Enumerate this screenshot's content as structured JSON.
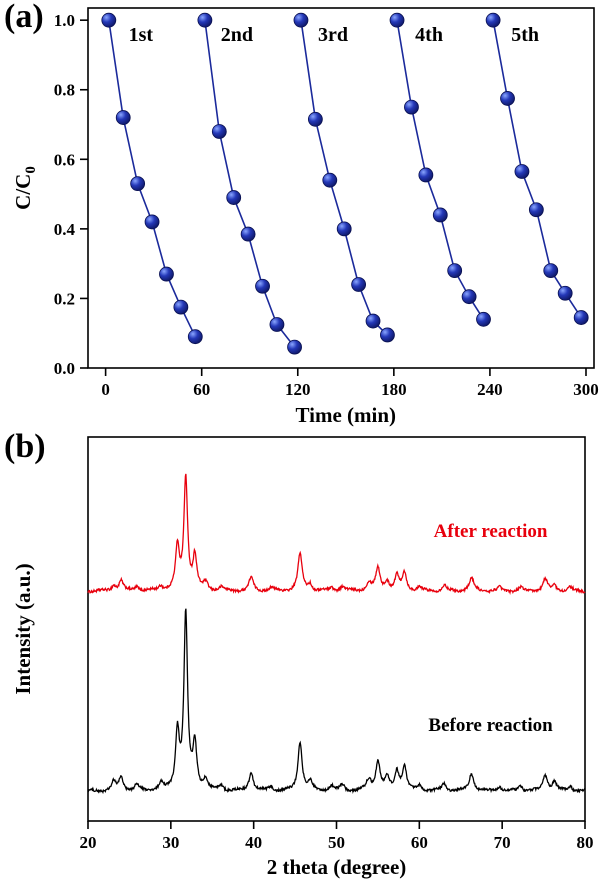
{
  "figure": {
    "background": "#ffffff"
  },
  "chart_data": [
    {
      "type": "line",
      "panel_label": "(a)",
      "title": "",
      "xlabel": "Time (min)",
      "ylabel": "C/C",
      "ylabel_sub": "0",
      "xlim": [
        -11,
        305
      ],
      "ylim": [
        0,
        1.035
      ],
      "xtick_values": [
        0,
        60,
        120,
        180,
        240,
        300
      ],
      "xtick_labels": [
        "0",
        "60",
        "120",
        "180",
        "240",
        "300"
      ],
      "ytick_values": [
        0,
        0.2,
        0.4,
        0.6,
        0.8,
        1.0
      ],
      "ytick_labels": [
        "0.0",
        "0.2",
        "0.4",
        "0.6",
        "0.8",
        "1.0"
      ],
      "line_color": "#1b2a9b",
      "marker_color": "#16227e",
      "cycle_labels": [
        {
          "text": "1st",
          "x": 22,
          "y": 0.94
        },
        {
          "text": "2nd",
          "x": 82,
          "y": 0.94
        },
        {
          "text": "3rd",
          "x": 142,
          "y": 0.94
        },
        {
          "text": "4th",
          "x": 202,
          "y": 0.94
        },
        {
          "text": "5th",
          "x": 262,
          "y": 0.94
        }
      ],
      "series": [
        {
          "name": "1st cycle",
          "x": [
            2,
            11,
            20,
            29,
            38,
            47,
            56
          ],
          "y": [
            1.0,
            0.72,
            0.53,
            0.42,
            0.27,
            0.175,
            0.09
          ]
        },
        {
          "name": "2nd cycle",
          "x": [
            62,
            71,
            80,
            89,
            98,
            107,
            118
          ],
          "y": [
            1.0,
            0.68,
            0.49,
            0.385,
            0.235,
            0.125,
            0.06
          ]
        },
        {
          "name": "3rd cycle",
          "x": [
            122,
            131,
            140,
            149,
            158,
            167,
            176
          ],
          "y": [
            1.0,
            0.715,
            0.54,
            0.4,
            0.24,
            0.135,
            0.095
          ]
        },
        {
          "name": "4th cycle",
          "x": [
            182,
            191,
            200,
            209,
            218,
            227,
            236
          ],
          "y": [
            1.0,
            0.75,
            0.555,
            0.44,
            0.28,
            0.205,
            0.14
          ]
        },
        {
          "name": "5th cycle",
          "x": [
            242,
            251,
            260,
            269,
            278,
            287,
            297
          ],
          "y": [
            1.0,
            0.775,
            0.565,
            0.455,
            0.28,
            0.215,
            0.145
          ]
        }
      ]
    },
    {
      "type": "line",
      "panel_label": "(b)",
      "title": "",
      "xlabel": "2 theta (degree)",
      "ylabel": "Intensity (a.u.)",
      "xlim": [
        20,
        80
      ],
      "xtick_values": [
        20,
        30,
        40,
        50,
        60,
        70,
        80
      ],
      "xtick_labels": [
        "20",
        "30",
        "40",
        "50",
        "60",
        "70",
        "80"
      ],
      "series": [
        {
          "name": "After reaction",
          "color": "#e8000d",
          "baseline": 0.406,
          "scale": 113,
          "noise": 2.4,
          "label_x": 0.81,
          "label_y": 0.26,
          "peaks": [
            [
              23.1,
              0.05,
              0.3
            ],
            [
              24.0,
              0.09,
              0.3
            ],
            [
              25.9,
              0.04,
              0.3
            ],
            [
              28.8,
              0.04,
              0.3
            ],
            [
              30.8,
              0.38,
              0.28
            ],
            [
              31.8,
              1.0,
              0.26
            ],
            [
              32.9,
              0.3,
              0.28
            ],
            [
              34.2,
              0.07,
              0.3
            ],
            [
              36.1,
              0.03,
              0.3
            ],
            [
              39.7,
              0.12,
              0.3
            ],
            [
              42.1,
              0.03,
              0.3
            ],
            [
              45.6,
              0.33,
              0.3
            ],
            [
              46.8,
              0.06,
              0.3
            ],
            [
              49.4,
              0.03,
              0.3
            ],
            [
              50.7,
              0.04,
              0.3
            ],
            [
              53.9,
              0.07,
              0.35
            ],
            [
              55.0,
              0.2,
              0.32
            ],
            [
              56.1,
              0.08,
              0.3
            ],
            [
              57.3,
              0.13,
              0.3
            ],
            [
              58.2,
              0.16,
              0.3
            ],
            [
              60.0,
              0.03,
              0.3
            ],
            [
              63.0,
              0.05,
              0.3
            ],
            [
              66.3,
              0.11,
              0.35
            ],
            [
              69.7,
              0.03,
              0.3
            ],
            [
              72.2,
              0.03,
              0.3
            ],
            [
              75.2,
              0.1,
              0.35
            ],
            [
              76.3,
              0.05,
              0.3
            ],
            [
              78.2,
              0.03,
              0.3
            ]
          ]
        },
        {
          "name": "Before reaction",
          "color": "#000000",
          "baseline": 0.927,
          "scale": 175,
          "noise": 2.4,
          "label_x": 0.81,
          "label_y": 0.765,
          "peaks": [
            [
              23.1,
              0.05,
              0.3
            ],
            [
              24.0,
              0.08,
              0.3
            ],
            [
              25.9,
              0.035,
              0.3
            ],
            [
              28.8,
              0.04,
              0.3
            ],
            [
              30.8,
              0.33,
              0.28
            ],
            [
              31.8,
              1.0,
              0.26
            ],
            [
              32.9,
              0.26,
              0.28
            ],
            [
              34.2,
              0.06,
              0.3
            ],
            [
              36.1,
              0.03,
              0.3
            ],
            [
              39.7,
              0.11,
              0.3
            ],
            [
              42.1,
              0.025,
              0.3
            ],
            [
              45.6,
              0.28,
              0.3
            ],
            [
              46.8,
              0.05,
              0.3
            ],
            [
              49.4,
              0.03,
              0.3
            ],
            [
              50.7,
              0.035,
              0.3
            ],
            [
              53.9,
              0.06,
              0.35
            ],
            [
              55.0,
              0.17,
              0.32
            ],
            [
              56.1,
              0.07,
              0.3
            ],
            [
              57.3,
              0.11,
              0.3
            ],
            [
              58.2,
              0.14,
              0.3
            ],
            [
              60.0,
              0.03,
              0.3
            ],
            [
              63.0,
              0.045,
              0.3
            ],
            [
              66.3,
              0.1,
              0.35
            ],
            [
              69.7,
              0.025,
              0.3
            ],
            [
              72.2,
              0.03,
              0.3
            ],
            [
              75.2,
              0.09,
              0.35
            ],
            [
              76.3,
              0.05,
              0.3
            ],
            [
              78.2,
              0.03,
              0.3
            ]
          ]
        }
      ]
    }
  ]
}
